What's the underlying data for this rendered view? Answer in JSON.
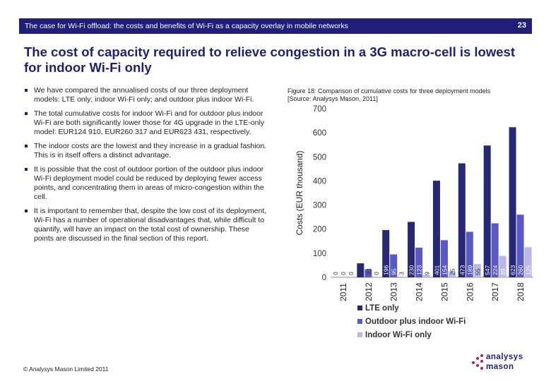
{
  "header": {
    "title": "The case for Wi-Fi offload: the costs and benefits of Wi-Fi as a capacity overlay in mobile networks",
    "page_number": "23"
  },
  "slide_title": "The cost of capacity required to relieve congestion in a 3G macro-cell is lowest for indoor Wi-Fi only",
  "bullets": [
    "We have compared the annualised costs of our three deployment models: LTE only; indoor Wi-Fi only; and outdoor plus indoor Wi-Fi.",
    "The total cumulative costs for indoor Wi-Fi and for outdoor plus indoor Wi-Fi are both significantly lower those for 4G upgrade in the LTE-only model: EUR124 910, EUR260 317 and EUR623 431, respectively.",
    "The indoor costs are the lowest and they increase in a gradual fashion. This is in itself offers a distinct advantage.",
    "It is possible that the cost of outdoor portion of the outdoor plus indoor Wi-Fi deployment model could be reduced by deploying fewer access points, and concentrating them in areas of micro-congestion within the cell.",
    "It is important to remember that, despite the low cost of its deployment, Wi-Fi has a number of operational disadvantages that, while difficult to quantify, will have an impact on the total cost of ownership. These points are discussed in the final section of this report."
  ],
  "figure_caption": {
    "line1": "Figure 18: Comparison of cumulative costs for three deployment models",
    "line2": "[Source: Analysys Mason, 2011]"
  },
  "chart_data": {
    "type": "bar",
    "ylabel": "Costs (EUR thousand)",
    "ylim": [
      0,
      700
    ],
    "yticks": [
      0,
      100,
      200,
      300,
      400,
      500,
      600,
      700
    ],
    "categories": [
      "2011",
      "2012",
      "2013",
      "2014",
      "2015",
      "2016",
      "2017",
      "2018"
    ],
    "series": [
      {
        "name": "LTE only",
        "color": "#27277a",
        "values": [
          0,
          58,
          196,
          230,
          401,
          473,
          547,
          623
        ],
        "labels": [
          "0",
          "58",
          "196",
          "230",
          "401",
          "473",
          "547",
          "623"
        ]
      },
      {
        "name": "Outdoor plus indoor Wi-Fi",
        "color": "#5858c8",
        "values": [
          0,
          33,
          95,
          123,
          154,
          189,
          224,
          260
        ],
        "labels": [
          "0",
          "33",
          "95",
          "123",
          "154",
          "189",
          "224",
          "260"
        ]
      },
      {
        "name": "Indoor Wi-Fi only",
        "color": "#b8b8ec",
        "values": [
          0,
          0,
          3,
          9,
          25,
          55,
          89,
          125
        ],
        "labels": [
          "0",
          "0",
          "3",
          "9",
          "25",
          "55",
          "89",
          "125"
        ]
      }
    ],
    "legend_position": "bottom",
    "grid": false
  },
  "footer": {
    "copyright": "© Analysys Mason Limited 2011"
  },
  "logo": {
    "word1": "analysys",
    "word2": "mason",
    "color": "#c2185b"
  }
}
